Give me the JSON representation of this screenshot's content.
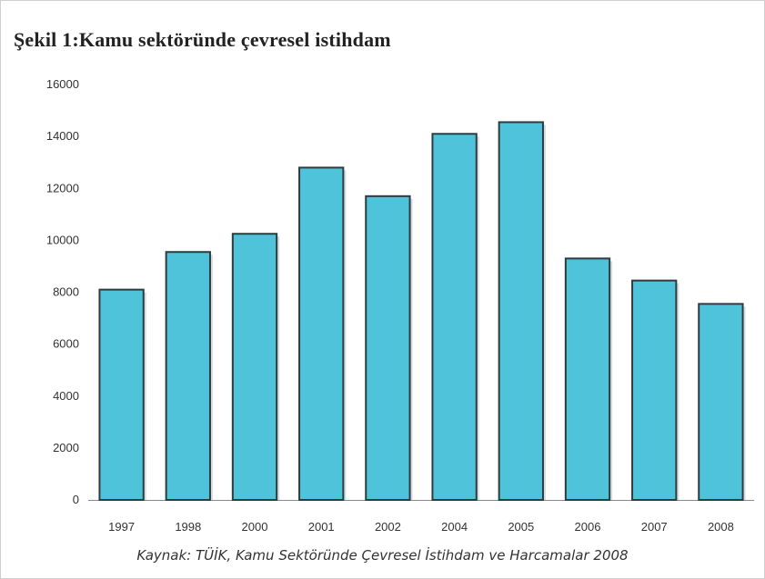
{
  "chart_data": {
    "type": "bar",
    "title": "Şekil 1:Kamu sektöründe çevresel istihdam",
    "xlabel": "",
    "ylabel": "",
    "categories": [
      "1997",
      "1998",
      "2000",
      "2001",
      "2002",
      "2004",
      "2005",
      "2006",
      "2007",
      "2008"
    ],
    "values": [
      8100,
      9550,
      10250,
      12800,
      11700,
      14100,
      14550,
      9300,
      8450,
      7550
    ],
    "ylim": [
      0,
      16000
    ],
    "yticks": [
      0,
      2000,
      4000,
      6000,
      8000,
      10000,
      12000,
      14000,
      16000
    ],
    "grid": false,
    "bar_color": "#4fc3da",
    "bar_edge_color": "#2f3b3e"
  },
  "source": "Kaynak: TÜİK, Kamu Sektöründe Çevresel İstihdam ve Harcamalar 2008"
}
